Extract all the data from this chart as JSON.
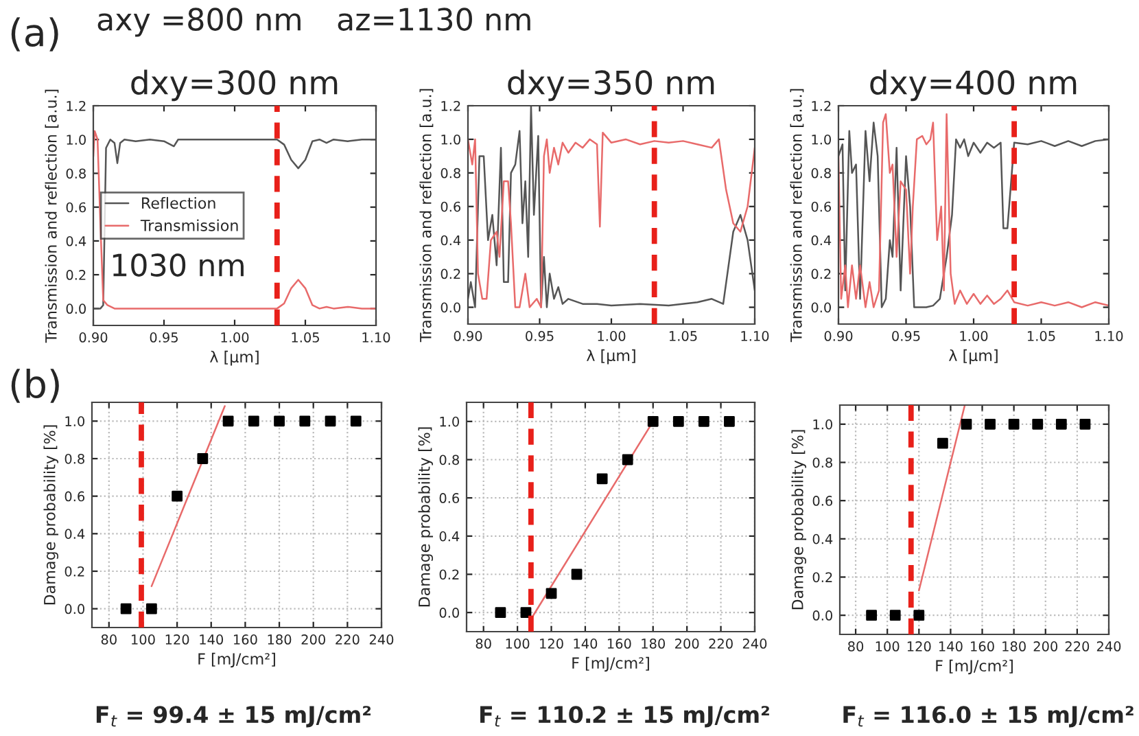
{
  "chart_data": [
    {
      "type": "line",
      "title": "dxy=300 nm",
      "xlabel": "λ [μm]",
      "ylabel": "Transmission and reflection [a.u.]",
      "xlim": [
        0.9,
        1.1
      ],
      "xticks": [
        {
          "value": 0.9,
          "label": "0.90"
        },
        {
          "value": 0.95,
          "label": "0.95"
        },
        {
          "value": 1.0,
          "label": "1.00"
        },
        {
          "value": 1.05,
          "label": "1.05"
        },
        {
          "value": 1.1,
          "label": "1.10"
        }
      ],
      "ylim": [
        -0.1,
        1.2
      ],
      "yticks": [
        {
          "value": 0.0,
          "label": "0.0"
        },
        {
          "value": 0.2,
          "label": "0.2"
        },
        {
          "value": 0.4,
          "label": "0.4"
        },
        {
          "value": 0.6,
          "label": "0.6"
        },
        {
          "value": 0.8,
          "label": "0.8"
        },
        {
          "value": 1.0,
          "label": "1.0"
        },
        {
          "value": 1.2,
          "label": "1.2"
        }
      ],
      "legend": "center left",
      "series": [
        {
          "name": "Reflection",
          "color": "#555555",
          "x": [
            0.9,
            0.905,
            0.907,
            0.909,
            0.912,
            0.915,
            0.917,
            0.919,
            0.922,
            0.93,
            0.94,
            0.95,
            0.957,
            0.96,
            0.97,
            1.0,
            1.03,
            1.035,
            1.04,
            1.045,
            1.05,
            1.055,
            1.06,
            1.065,
            1.07,
            1.08,
            1.09,
            1.1
          ],
          "values": [
            0.0,
            0.0,
            0.02,
            0.95,
            1.0,
            0.98,
            0.86,
            0.98,
            1.0,
            0.99,
            1.0,
            0.99,
            0.96,
            1.0,
            1.0,
            1.0,
            1.0,
            0.97,
            0.88,
            0.83,
            0.88,
            0.99,
            1.0,
            0.98,
            1.0,
            0.99,
            1.0,
            1.0
          ]
        },
        {
          "name": "Transmission",
          "color": "#e86a6a",
          "x": [
            0.9,
            0.901,
            0.903,
            0.905,
            0.907,
            0.91,
            0.915,
            0.95,
            1.0,
            1.03,
            1.035,
            1.04,
            1.045,
            1.05,
            1.055,
            1.06,
            1.065,
            1.07,
            1.08,
            1.09,
            1.1
          ],
          "values": [
            0.9,
            1.05,
            1.0,
            0.5,
            0.05,
            0.02,
            0.0,
            0.0,
            0.0,
            0.0,
            0.03,
            0.12,
            0.17,
            0.12,
            0.02,
            0.0,
            0.01,
            0.0,
            0.01,
            0.0,
            0.0
          ]
        }
      ],
      "ref_lines": [
        {
          "axis": "x",
          "value": 1.03,
          "color": "#e8201a",
          "line_style": "dashed"
        }
      ],
      "annotations": [
        "(a)",
        "axy =800 nm",
        "az=1130 nm",
        "1030 nm"
      ]
    },
    {
      "type": "line",
      "title": "dxy=350 nm",
      "xlabel": "λ [μm]",
      "ylabel": "Transmission and reflection [a.u.]",
      "xlim": [
        0.9,
        1.1
      ],
      "xticks": [
        {
          "value": 0.9,
          "label": "0.90"
        },
        {
          "value": 0.95,
          "label": "0.95"
        },
        {
          "value": 1.0,
          "label": "1.00"
        },
        {
          "value": 1.05,
          "label": "1.05"
        },
        {
          "value": 1.1,
          "label": "1.10"
        }
      ],
      "ylim": [
        -0.1,
        1.2
      ],
      "yticks": [
        {
          "value": 0.0,
          "label": "0.0"
        },
        {
          "value": 0.2,
          "label": "0.2"
        },
        {
          "value": 0.4,
          "label": "0.4"
        },
        {
          "value": 0.6,
          "label": "0.6"
        },
        {
          "value": 0.8,
          "label": "0.8"
        },
        {
          "value": 1.0,
          "label": "1.0"
        },
        {
          "value": 1.2,
          "label": "1.2"
        }
      ],
      "series": [
        {
          "color": "#555555",
          "x": [
            0.9,
            0.902,
            0.905,
            0.908,
            0.911,
            0.914,
            0.917,
            0.92,
            0.923,
            0.925,
            0.928,
            0.93,
            0.933,
            0.936,
            0.938,
            0.94,
            0.942,
            0.944,
            0.946,
            0.949,
            0.951,
            0.953,
            0.955,
            0.957,
            0.96,
            0.963,
            0.966,
            0.97,
            0.98,
            0.99,
            1.0,
            1.02,
            1.04,
            1.06,
            1.07,
            1.078,
            1.085,
            1.09,
            1.095,
            1.1
          ],
          "values": [
            0.05,
            0.15,
            0.0,
            0.9,
            0.9,
            0.4,
            0.55,
            0.25,
            0.95,
            0.15,
            0.15,
            0.8,
            0.85,
            1.05,
            0.5,
            0.75,
            0.3,
            1.2,
            0.55,
            1.02,
            0.0,
            0.3,
            0.0,
            0.2,
            0.05,
            0.12,
            0.02,
            0.05,
            0.02,
            0.02,
            0.01,
            0.02,
            0.01,
            0.03,
            0.05,
            0.02,
            0.45,
            0.55,
            0.4,
            0.1
          ]
        },
        {
          "color": "#e86a6a",
          "x": [
            0.9,
            0.903,
            0.905,
            0.907,
            0.91,
            0.913,
            0.916,
            0.92,
            0.922,
            0.925,
            0.928,
            0.93,
            0.933,
            0.936,
            0.94,
            0.943,
            0.948,
            0.951,
            0.953,
            0.955,
            0.957,
            0.96,
            0.963,
            0.966,
            0.97,
            0.975,
            0.98,
            0.985,
            0.99,
            0.992,
            0.994,
            1.0,
            1.01,
            1.02,
            1.03,
            1.04,
            1.05,
            1.06,
            1.07,
            1.075,
            1.08,
            1.085,
            1.09,
            1.095,
            1.1
          ],
          "values": [
            1.0,
            0.85,
            1.0,
            0.2,
            0.05,
            0.05,
            0.4,
            0.45,
            0.3,
            0.75,
            0.75,
            0.5,
            0.0,
            0.0,
            0.2,
            0.0,
            0.05,
            0.0,
            0.9,
            1.0,
            0.8,
            0.95,
            0.85,
            0.98,
            0.92,
            0.98,
            0.95,
            1.0,
            0.97,
            0.48,
            1.04,
            0.98,
            1.0,
            0.97,
            0.99,
            0.98,
            0.99,
            0.97,
            0.95,
            1.0,
            0.7,
            0.5,
            0.45,
            0.6,
            0.95
          ]
        }
      ],
      "ref_lines": [
        {
          "axis": "x",
          "value": 1.03,
          "color": "#e8201a",
          "line_style": "dashed"
        }
      ]
    },
    {
      "type": "line",
      "title": "dxy=400 nm",
      "xlabel": "λ [μm]",
      "ylabel": "Transmission and reflection [a.u.]",
      "xlim": [
        0.9,
        1.1
      ],
      "xticks": [
        {
          "value": 0.9,
          "label": "0.90"
        },
        {
          "value": 0.95,
          "label": "0.95"
        },
        {
          "value": 1.0,
          "label": "1.00"
        },
        {
          "value": 1.05,
          "label": "1.05"
        },
        {
          "value": 1.1,
          "label": "1.10"
        }
      ],
      "ylim": [
        -0.1,
        1.2
      ],
      "yticks": [
        {
          "value": 0.0,
          "label": "0.0"
        },
        {
          "value": 0.2,
          "label": "0.2"
        },
        {
          "value": 0.4,
          "label": "0.4"
        },
        {
          "value": 0.6,
          "label": "0.6"
        },
        {
          "value": 0.8,
          "label": "0.8"
        },
        {
          "value": 1.0,
          "label": "1.0"
        },
        {
          "value": 1.2,
          "label": "1.2"
        }
      ],
      "series": [
        {
          "color": "#555555",
          "x": [
            0.9,
            0.903,
            0.905,
            0.908,
            0.91,
            0.913,
            0.916,
            0.92,
            0.923,
            0.926,
            0.929,
            0.932,
            0.935,
            0.938,
            0.94,
            0.943,
            0.946,
            0.95,
            0.953,
            0.956,
            0.96,
            0.965,
            0.97,
            0.975,
            0.98,
            0.984,
            0.987,
            0.99,
            0.993,
            0.996,
            1.0,
            1.005,
            1.01,
            1.015,
            1.02,
            1.022,
            1.025,
            1.03,
            1.04,
            1.05,
            1.06,
            1.07,
            1.08,
            1.09,
            1.1
          ],
          "values": [
            0.9,
            0.97,
            0.1,
            1.05,
            0.8,
            0.85,
            0.05,
            1.05,
            0.75,
            1.1,
            0.9,
            0.0,
            0.05,
            0.4,
            0.3,
            0.95,
            0.1,
            0.9,
            0.6,
            0.0,
            0.0,
            0.0,
            0.01,
            0.05,
            0.3,
            0.55,
            1.0,
            0.95,
            1.0,
            0.9,
            0.98,
            0.92,
            0.98,
            0.95,
            0.98,
            0.47,
            0.47,
            0.98,
            0.97,
            0.99,
            0.96,
            0.99,
            0.96,
            0.99,
            1.0
          ]
        },
        {
          "color": "#e86a6a",
          "x": [
            0.9,
            0.902,
            0.905,
            0.907,
            0.91,
            0.913,
            0.916,
            0.92,
            0.923,
            0.926,
            0.93,
            0.933,
            0.935,
            0.938,
            0.94,
            0.943,
            0.946,
            0.95,
            0.953,
            0.955,
            0.958,
            0.962,
            0.965,
            0.968,
            0.97,
            0.973,
            0.976,
            0.978,
            0.98,
            0.983,
            0.986,
            0.99,
            0.995,
            1.0,
            1.005,
            1.01,
            1.015,
            1.02,
            1.025,
            1.03,
            1.04,
            1.05,
            1.06,
            1.07,
            1.08,
            1.09,
            1.1
          ],
          "values": [
            0.9,
            0.05,
            0.25,
            0.0,
            0.25,
            0.05,
            0.25,
            0.0,
            0.15,
            0.0,
            0.1,
            1.1,
            1.15,
            0.8,
            0.85,
            0.3,
            0.75,
            0.7,
            0.2,
            0.6,
            1.0,
            1.02,
            0.97,
            1.0,
            1.1,
            0.4,
            0.6,
            0.1,
            1.15,
            0.2,
            0.02,
            0.1,
            0.02,
            0.08,
            0.02,
            0.07,
            0.02,
            0.05,
            0.1,
            0.03,
            0.01,
            0.03,
            0.01,
            0.03,
            0.0,
            0.03,
            0.01
          ]
        }
      ],
      "ref_lines": [
        {
          "axis": "x",
          "value": 1.03,
          "color": "#e8201a",
          "line_style": "dashed"
        }
      ]
    },
    {
      "type": "scatter",
      "xlabel": "F [mJ/cm²]",
      "ylabel": "Damage probability [%]",
      "grid": true,
      "xlim": [
        70,
        240
      ],
      "xticks": [
        80,
        100,
        120,
        140,
        160,
        180,
        200,
        220,
        240
      ],
      "ylim": [
        -0.1,
        1.1
      ],
      "yticks": [
        {
          "value": 0.0,
          "label": "0.0"
        },
        {
          "value": 0.2,
          "label": "0.2"
        },
        {
          "value": 0.4,
          "label": "0.4"
        },
        {
          "value": 0.6,
          "label": "0.6"
        },
        {
          "value": 0.8,
          "label": "0.8"
        },
        {
          "value": 1.0,
          "label": "1.0"
        }
      ],
      "series": [
        {
          "type": "scatter",
          "marker": "square",
          "color": "#000000",
          "x": [
            90,
            105,
            120,
            135,
            150,
            165,
            180,
            195,
            210,
            225
          ],
          "values": [
            0,
            0,
            0.6,
            0.8,
            1,
            1,
            1,
            1,
            1,
            1
          ]
        },
        {
          "type": "line",
          "color": "#e86a6a",
          "x": [
            105,
            148
          ],
          "values": [
            0.12,
            1.08
          ]
        }
      ],
      "ref_lines": [
        {
          "axis": "x",
          "value": 99,
          "color": "#e8201a",
          "line_style": "dashed"
        }
      ],
      "annotations": [
        "(b)",
        "F$_{t}$ = 99.4 ± 15 mJ/cm²"
      ]
    },
    {
      "type": "scatter",
      "xlabel": "F [mJ/cm²]",
      "ylabel": "Damage probability [%]",
      "grid": true,
      "xlim": [
        70,
        240
      ],
      "xticks": [
        80,
        100,
        120,
        140,
        160,
        180,
        200,
        220,
        240
      ],
      "ylim": [
        -0.1,
        1.1
      ],
      "yticks": [
        {
          "value": 0.0,
          "label": "0.0"
        },
        {
          "value": 0.2,
          "label": "0.2"
        },
        {
          "value": 0.4,
          "label": "0.4"
        },
        {
          "value": 0.6,
          "label": "0.6"
        },
        {
          "value": 0.8,
          "label": "0.8"
        },
        {
          "value": 1.0,
          "label": "1.0"
        }
      ],
      "series": [
        {
          "type": "scatter",
          "marker": "square",
          "color": "#000000",
          "x": [
            90,
            105,
            120,
            135,
            150,
            165,
            180,
            195,
            210,
            225
          ],
          "values": [
            0,
            0,
            0.1,
            0.2,
            0.7,
            0.8,
            1,
            1,
            1,
            1
          ]
        },
        {
          "type": "line",
          "color": "#e86a6a",
          "x": [
            109,
            180
          ],
          "values": [
            -0.02,
            1.0
          ]
        }
      ],
      "ref_lines": [
        {
          "axis": "x",
          "value": 108,
          "color": "#e8201a",
          "line_style": "dashed"
        }
      ],
      "annotations": [
        "F$_{t}$ = 110.2 ± 15 mJ/cm²"
      ]
    },
    {
      "type": "scatter",
      "xlabel": "F [mJ/cm²]",
      "ylabel": "Damage probability [%]",
      "grid": true,
      "xlim": [
        70,
        240
      ],
      "xticks": [
        80,
        100,
        120,
        140,
        160,
        180,
        200,
        220,
        240
      ],
      "ylim": [
        -0.1,
        1.1
      ],
      "yticks": [
        {
          "value": 0.0,
          "label": "0.0"
        },
        {
          "value": 0.2,
          "label": "0.2"
        },
        {
          "value": 0.4,
          "label": "0.4"
        },
        {
          "value": 0.6,
          "label": "0.6"
        },
        {
          "value": 0.8,
          "label": "0.8"
        },
        {
          "value": 1.0,
          "label": "1.0"
        }
      ],
      "series": [
        {
          "type": "scatter",
          "marker": "square",
          "color": "#000000",
          "x": [
            90,
            105,
            120,
            135,
            150,
            165,
            180,
            195,
            210,
            225
          ],
          "values": [
            0,
            0,
            0,
            0.9,
            1,
            1,
            1,
            1,
            1,
            1
          ]
        },
        {
          "type": "line",
          "color": "#e86a6a",
          "x": [
            120,
            149
          ],
          "values": [
            0.13,
            1.1
          ]
        }
      ],
      "ref_lines": [
        {
          "axis": "x",
          "value": 115,
          "color": "#e8201a",
          "line_style": "dashed"
        }
      ],
      "annotations": [
        "F$_{t}$ = 116.0 ± 15 mJ/cm²"
      ]
    }
  ]
}
